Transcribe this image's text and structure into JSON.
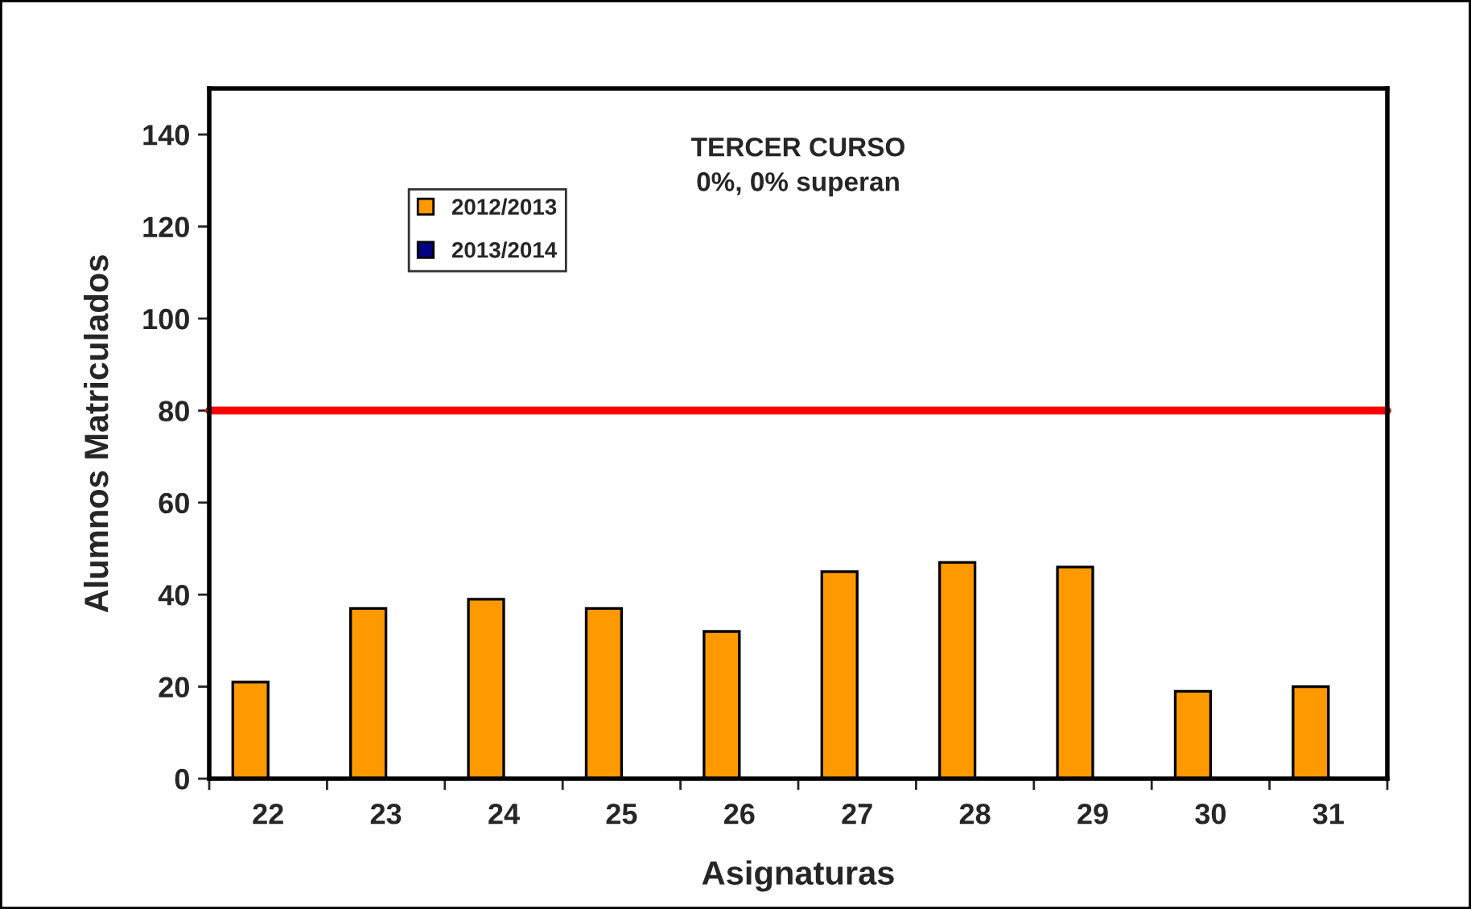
{
  "chart_data": {
    "type": "bar",
    "title": "TERCER CURSO\n0%, 0% superan",
    "xlabel": "Asignaturas",
    "ylabel": "Alumnos Matriculados",
    "categories": [
      "22",
      "23",
      "24",
      "25",
      "26",
      "27",
      "28",
      "29",
      "30",
      "31"
    ],
    "series": [
      {
        "name": "2012/2013",
        "color": "#ff9900",
        "values": [
          21,
          37,
          39,
          37,
          32,
          45,
          47,
          46,
          19,
          20
        ]
      },
      {
        "name": "2013/2014",
        "color": "#000080",
        "values": [
          null,
          null,
          null,
          null,
          null,
          null,
          null,
          null,
          null,
          null
        ]
      }
    ],
    "ylim": [
      0,
      150
    ],
    "yticks": [
      0,
      20,
      40,
      60,
      80,
      100,
      120,
      140
    ],
    "ref_lines": [
      {
        "axis": "y",
        "value": 80,
        "color": "#ff0000",
        "line_style": "solid"
      }
    ],
    "grid": false,
    "legend": "top left"
  }
}
